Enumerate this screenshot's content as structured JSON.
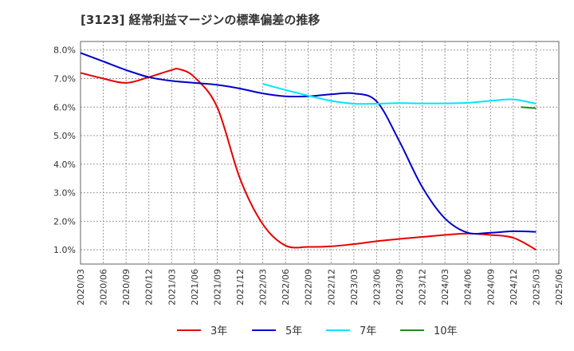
{
  "chart_data": {
    "type": "line",
    "title": "[3123]  経常利益マージンの標準偏差の推移",
    "xlabel": "",
    "ylabel": "",
    "ylim": [
      0.5,
      8.3
    ],
    "y_ticks": [
      {
        "value": 1.0,
        "label": "1.0%"
      },
      {
        "value": 2.0,
        "label": "2.0%"
      },
      {
        "value": 3.0,
        "label": "3.0%"
      },
      {
        "value": 4.0,
        "label": "4.0%"
      },
      {
        "value": 5.0,
        "label": "5.0%"
      },
      {
        "value": 6.0,
        "label": "6.0%"
      },
      {
        "value": 7.0,
        "label": "7.0%"
      },
      {
        "value": 8.0,
        "label": "8.0%"
      }
    ],
    "x_ticks": [
      "2020/03",
      "2020/06",
      "2020/09",
      "2020/12",
      "2021/03",
      "2021/06",
      "2021/09",
      "2021/12",
      "2022/03",
      "2022/06",
      "2022/09",
      "2022/12",
      "2023/03",
      "2023/06",
      "2023/09",
      "2023/12",
      "2024/03",
      "2024/06",
      "2024/09",
      "2024/12",
      "2025/03",
      "2025/06"
    ],
    "grid": true,
    "legend_position": "bottom",
    "series": [
      {
        "name": "3年",
        "color": "#e60000",
        "points": [
          [
            "2020/03",
            7.2
          ],
          [
            "2020/06",
            7.0
          ],
          [
            "2020/09",
            6.85
          ],
          [
            "2020/12",
            7.05
          ],
          [
            "2021/03",
            7.3
          ],
          [
            "2021/04",
            7.33
          ],
          [
            "2021/06",
            7.05
          ],
          [
            "2021/09",
            6.0
          ],
          [
            "2021/12",
            3.5
          ],
          [
            "2022/03",
            1.9
          ],
          [
            "2022/06",
            1.15
          ],
          [
            "2022/09",
            1.1
          ],
          [
            "2022/12",
            1.12
          ],
          [
            "2023/03",
            1.2
          ],
          [
            "2023/06",
            1.3
          ],
          [
            "2023/09",
            1.38
          ],
          [
            "2023/12",
            1.45
          ],
          [
            "2024/03",
            1.52
          ],
          [
            "2024/06",
            1.57
          ],
          [
            "2024/09",
            1.52
          ],
          [
            "2024/12",
            1.42
          ],
          [
            "2025/03",
            1.0
          ]
        ]
      },
      {
        "name": "5年",
        "color": "#0000cc",
        "points": [
          [
            "2020/03",
            7.9
          ],
          [
            "2020/06",
            7.6
          ],
          [
            "2020/09",
            7.3
          ],
          [
            "2020/12",
            7.05
          ],
          [
            "2021/03",
            6.92
          ],
          [
            "2021/06",
            6.85
          ],
          [
            "2021/09",
            6.78
          ],
          [
            "2021/12",
            6.65
          ],
          [
            "2022/03",
            6.48
          ],
          [
            "2022/06",
            6.38
          ],
          [
            "2022/09",
            6.38
          ],
          [
            "2022/12",
            6.45
          ],
          [
            "2023/03",
            6.48
          ],
          [
            "2023/06",
            6.2
          ],
          [
            "2023/09",
            4.8
          ],
          [
            "2023/12",
            3.2
          ],
          [
            "2024/03",
            2.1
          ],
          [
            "2024/06",
            1.6
          ],
          [
            "2024/09",
            1.6
          ],
          [
            "2024/12",
            1.65
          ],
          [
            "2025/03",
            1.63
          ]
        ]
      },
      {
        "name": "7年",
        "color": "#00e5ff",
        "points": [
          [
            "2022/03",
            6.82
          ],
          [
            "2022/06",
            6.6
          ],
          [
            "2022/09",
            6.4
          ],
          [
            "2022/12",
            6.22
          ],
          [
            "2023/03",
            6.12
          ],
          [
            "2023/06",
            6.12
          ],
          [
            "2023/09",
            6.14
          ],
          [
            "2023/12",
            6.13
          ],
          [
            "2024/03",
            6.13
          ],
          [
            "2024/06",
            6.15
          ],
          [
            "2024/09",
            6.22
          ],
          [
            "2024/12",
            6.27
          ],
          [
            "2025/03",
            6.12
          ]
        ]
      },
      {
        "name": "10年",
        "color": "#228b22",
        "points": [
          [
            "2025/01",
            6.0
          ],
          [
            "2025/03",
            5.96
          ]
        ]
      }
    ]
  }
}
